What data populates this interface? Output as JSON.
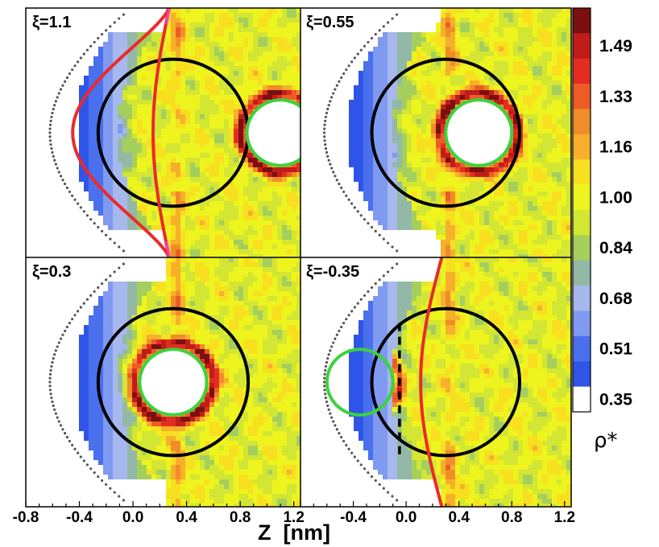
{
  "chart_data": {
    "type": "heatmap",
    "title": "",
    "xlabel": "Z  [nm]",
    "xlim": [
      -0.8,
      1.25
    ],
    "x_ticks": [
      "-0.8",
      "-0.4",
      "0.0",
      "0.4",
      "0.8",
      "1.2"
    ],
    "colorbar": {
      "title": "ρ*",
      "ticks": [
        "1.49",
        "1.33",
        "1.16",
        "1.00",
        "0.84",
        "0.68",
        "0.51",
        "0.35"
      ],
      "levels": [
        {
          "value": 0.35,
          "color": "#ffffff"
        },
        {
          "value": 0.43,
          "color": "#2f55e8"
        },
        {
          "value": 0.51,
          "color": "#4a70ee"
        },
        {
          "value": 0.59,
          "color": "#7f9af0"
        },
        {
          "value": 0.68,
          "color": "#a6b8ee"
        },
        {
          "value": 0.76,
          "color": "#93b8a8"
        },
        {
          "value": 0.84,
          "color": "#a5cf5c"
        },
        {
          "value": 0.92,
          "color": "#d3e633"
        },
        {
          "value": 1.0,
          "color": "#eef41e"
        },
        {
          "value": 1.08,
          "color": "#f8e020"
        },
        {
          "value": 1.16,
          "color": "#f6b02c"
        },
        {
          "value": 1.24,
          "color": "#f08c2a"
        },
        {
          "value": 1.33,
          "color": "#ee5c25"
        },
        {
          "value": 1.41,
          "color": "#e32d22"
        },
        {
          "value": 1.49,
          "color": "#c01d1a"
        },
        {
          "value": 1.57,
          "color": "#7c0f0f"
        }
      ]
    },
    "panels": [
      {
        "label": "ξ=1.1",
        "big_circle_center_z": 0.3,
        "small_circle_center_z": 1.1,
        "small_circle_center_y": 0.0,
        "interface_curve": true,
        "dashed_boundary": false
      },
      {
        "label": "ξ=0.55",
        "big_circle_center_z": 0.3,
        "small_circle_center_z": 0.55,
        "small_circle_center_y": 0.0,
        "interface_curve": false,
        "dashed_boundary": false
      },
      {
        "label": "ξ=0.3",
        "big_circle_center_z": 0.3,
        "small_circle_center_z": 0.3,
        "small_circle_center_y": 0.0,
        "interface_curve": false,
        "dashed_boundary": false
      },
      {
        "label": "ξ=-0.35",
        "big_circle_center_z": 0.3,
        "small_circle_center_z": -0.35,
        "small_circle_center_y": 0.0,
        "interface_curve": true,
        "dashed_boundary": true
      }
    ]
  }
}
